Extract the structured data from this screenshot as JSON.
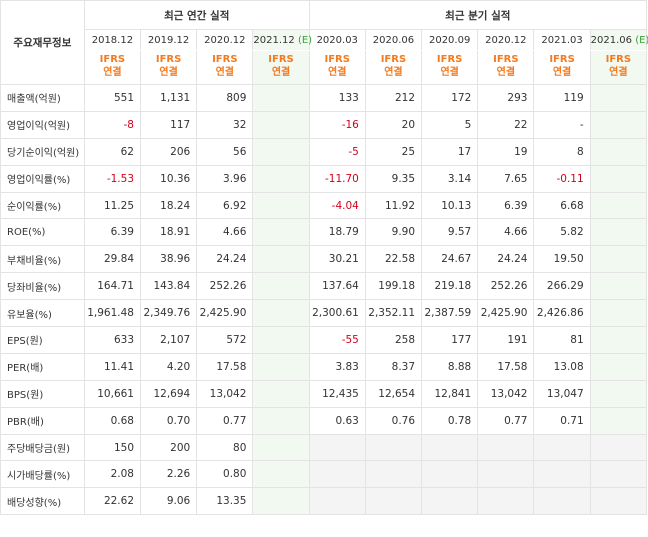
{
  "header": {
    "title_label": "주요재무정보",
    "annual_label": "최근 연간 실적",
    "quarter_label": "최근 분기 실적",
    "annual_periods": [
      "2018.12",
      "2019.12",
      "2020.12",
      "2021.12"
    ],
    "quarter_periods": [
      "2020.03",
      "2020.06",
      "2020.09",
      "2020.12",
      "2021.03",
      "2021.06"
    ],
    "estimate_mark": "(E)",
    "basis_line1": "IFRS",
    "basis_line2": "연결"
  },
  "rows": [
    {
      "label": "매출액(억원)",
      "annual": [
        "551",
        "1,131",
        "809",
        ""
      ],
      "quarter": [
        "133",
        "212",
        "172",
        "293",
        "119",
        ""
      ]
    },
    {
      "label": "영업이익(억원)",
      "annual": [
        "-8",
        "117",
        "32",
        ""
      ],
      "quarter": [
        "-16",
        "20",
        "5",
        "22",
        "-",
        ""
      ]
    },
    {
      "label": "당기순이익(억원)",
      "annual": [
        "62",
        "206",
        "56",
        ""
      ],
      "quarter": [
        "-5",
        "25",
        "17",
        "19",
        "8",
        ""
      ]
    },
    {
      "label": "영업이익률(%)",
      "annual": [
        "-1.53",
        "10.36",
        "3.96",
        ""
      ],
      "quarter": [
        "-11.70",
        "9.35",
        "3.14",
        "7.65",
        "-0.11",
        ""
      ]
    },
    {
      "label": "순이익률(%)",
      "annual": [
        "11.25",
        "18.24",
        "6.92",
        ""
      ],
      "quarter": [
        "-4.04",
        "11.92",
        "10.13",
        "6.39",
        "6.68",
        ""
      ]
    },
    {
      "label": "ROE(%)",
      "annual": [
        "6.39",
        "18.91",
        "4.66",
        ""
      ],
      "quarter": [
        "18.79",
        "9.90",
        "9.57",
        "4.66",
        "5.82",
        ""
      ]
    },
    {
      "label": "부채비율(%)",
      "annual": [
        "29.84",
        "38.96",
        "24.24",
        ""
      ],
      "quarter": [
        "30.21",
        "22.58",
        "24.67",
        "24.24",
        "19.50",
        ""
      ]
    },
    {
      "label": "당좌비율(%)",
      "annual": [
        "164.71",
        "143.84",
        "252.26",
        ""
      ],
      "quarter": [
        "137.64",
        "199.18",
        "219.18",
        "252.26",
        "266.29",
        ""
      ]
    },
    {
      "label": "유보율(%)",
      "annual": [
        "1,961.48",
        "2,349.76",
        "2,425.90",
        ""
      ],
      "quarter": [
        "2,300.61",
        "2,352.11",
        "2,387.59",
        "2,425.90",
        "2,426.86",
        ""
      ]
    },
    {
      "label": "EPS(원)",
      "annual": [
        "633",
        "2,107",
        "572",
        ""
      ],
      "quarter": [
        "-55",
        "258",
        "177",
        "191",
        "81",
        ""
      ]
    },
    {
      "label": "PER(배)",
      "annual": [
        "11.41",
        "4.20",
        "17.58",
        ""
      ],
      "quarter": [
        "3.83",
        "8.37",
        "8.88",
        "17.58",
        "13.08",
        ""
      ]
    },
    {
      "label": "BPS(원)",
      "annual": [
        "10,661",
        "12,694",
        "13,042",
        ""
      ],
      "quarter": [
        "12,435",
        "12,654",
        "12,841",
        "13,042",
        "13,047",
        ""
      ]
    },
    {
      "label": "PBR(배)",
      "annual": [
        "0.68",
        "0.70",
        "0.77",
        ""
      ],
      "quarter": [
        "0.63",
        "0.76",
        "0.78",
        "0.77",
        "0.71",
        ""
      ]
    },
    {
      "label": "주당배당금(원)",
      "annual": [
        "150",
        "200",
        "80",
        ""
      ],
      "quarter": [
        "",
        "",
        "",
        "",
        "",
        ""
      ]
    },
    {
      "label": "시가배당률(%)",
      "annual": [
        "2.08",
        "2.26",
        "0.80",
        ""
      ],
      "quarter": [
        "",
        "",
        "",
        "",
        "",
        ""
      ]
    },
    {
      "label": "배당성향(%)",
      "annual": [
        "22.62",
        "9.06",
        "13.35",
        ""
      ],
      "quarter": [
        "",
        "",
        "",
        "",
        "",
        ""
      ]
    }
  ],
  "colors": {
    "negative": "#d0021b",
    "ifrs": "#f57a1f",
    "estimate_mark": "#3a9e3a",
    "estimate_bg": "#f2f9f1",
    "empty_bg": "#f4f4f4"
  }
}
